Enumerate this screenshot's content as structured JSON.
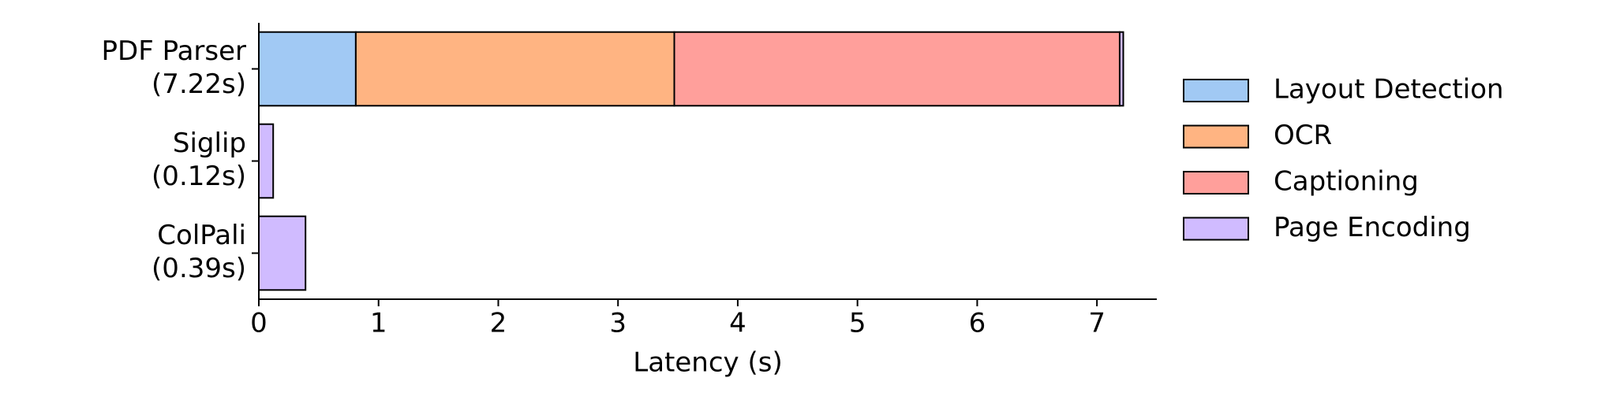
{
  "chart_data": {
    "type": "stacked-barh",
    "xlabel": "Latency (s)",
    "categories": [
      [
        "PDF Parser",
        "(7.22s)"
      ],
      [
        "Siglip",
        "(0.12s)"
      ],
      [
        "ColPali",
        "(0.39s)"
      ]
    ],
    "series": [
      {
        "name": "Layout Detection",
        "color": "#a1c9f4",
        "values": [
          0.81,
          0,
          0
        ]
      },
      {
        "name": "OCR",
        "color": "#ffb482",
        "values": [
          2.66,
          0,
          0
        ]
      },
      {
        "name": "Captioning",
        "color": "#ff9f9b",
        "values": [
          3.72,
          0,
          0
        ]
      },
      {
        "name": "Page Encoding",
        "color": "#d0bbff",
        "values": [
          0.03,
          0.12,
          0.39
        ]
      }
    ],
    "xlim": [
      0,
      7.5
    ],
    "xticks": [
      0,
      1,
      2,
      3,
      4,
      5,
      6,
      7
    ],
    "legend": "right"
  }
}
